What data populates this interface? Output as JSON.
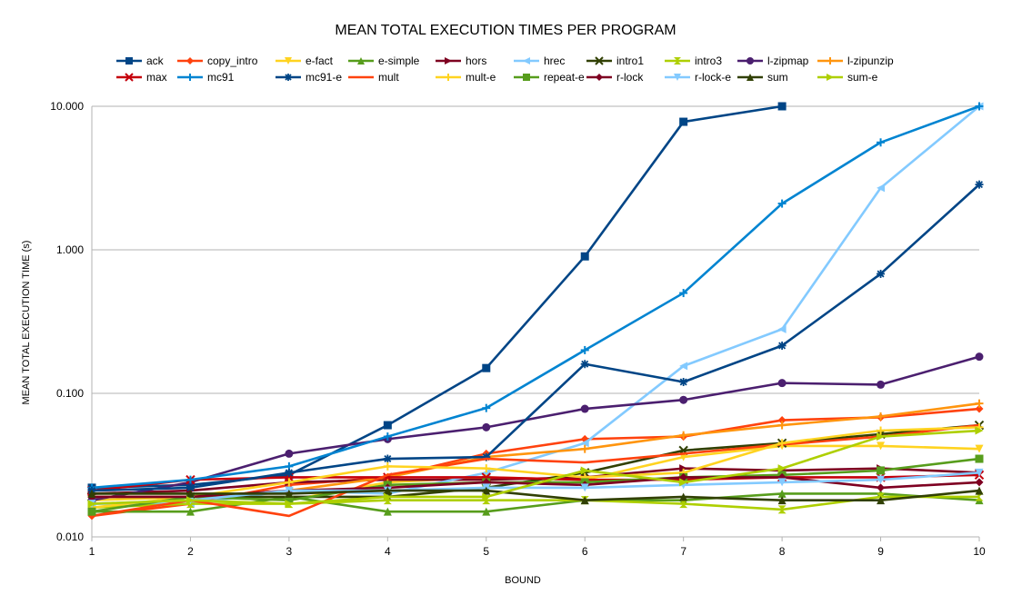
{
  "chart_data": {
    "type": "line",
    "title": "MEAN TOTAL EXECUTION TIMES PER PROGRAM",
    "xlabel": "BOUND",
    "ylabel": "MEAN TOTAL EXECUTION TIME (s)",
    "yscale": "log",
    "ylim": [
      0.01,
      10
    ],
    "xlim": [
      1,
      10
    ],
    "grid": "horizontal",
    "legend_position": "top",
    "x": [
      1,
      2,
      3,
      4,
      5,
      6,
      7,
      8,
      9,
      10
    ],
    "x_tick_labels": [
      "1",
      "2",
      "3",
      "4",
      "5",
      "6",
      "7",
      "8",
      "9",
      "10"
    ],
    "y_tick_values": [
      0.01,
      0.1,
      1,
      10
    ],
    "y_tick_labels": [
      "0.010",
      "0.100",
      "1.000",
      "10.000"
    ],
    "series": [
      {
        "name": "ack",
        "color": "#004586",
        "marker": "square",
        "values": [
          0.022,
          0.023,
          0.027,
          0.06,
          0.15,
          0.9,
          7.8,
          10.0,
          null,
          null
        ]
      },
      {
        "name": "copy_intro",
        "color": "#ff420e",
        "marker": "diamond",
        "values": [
          0.014,
          0.017,
          0.023,
          0.026,
          0.038,
          0.048,
          0.05,
          0.065,
          0.068,
          0.078
        ]
      },
      {
        "name": "e-fact",
        "color": "#ffd320",
        "marker": "triangle-down",
        "values": [
          0.018,
          0.019,
          0.018,
          0.024,
          0.026,
          0.025,
          0.036,
          0.043,
          0.043,
          0.041
        ]
      },
      {
        "name": "e-simple",
        "color": "#579d1c",
        "marker": "triangle-up",
        "values": [
          0.015,
          0.015,
          0.019,
          0.015,
          0.015,
          0.018,
          0.018,
          0.02,
          0.02,
          0.018
        ]
      },
      {
        "name": "hors",
        "color": "#7e0021",
        "marker": "triangle-right",
        "values": [
          0.02,
          0.021,
          0.024,
          0.025,
          0.025,
          0.026,
          0.03,
          0.029,
          0.03,
          0.028
        ]
      },
      {
        "name": "hrec",
        "color": "#83caff",
        "marker": "triangle-left",
        "values": [
          0.017,
          0.017,
          0.021,
          0.02,
          0.028,
          0.045,
          0.155,
          0.28,
          2.7,
          10.0
        ]
      },
      {
        "name": "intro1",
        "color": "#314004",
        "marker": "x",
        "values": [
          0.019,
          0.019,
          0.019,
          0.019,
          0.022,
          0.028,
          0.04,
          0.045,
          0.052,
          0.06
        ]
      },
      {
        "name": "intro3",
        "color": "#aecf00",
        "marker": "hourglass",
        "values": [
          0.016,
          0.017,
          0.017,
          0.018,
          0.018,
          0.018,
          0.017,
          0.0155,
          0.019,
          0.019
        ]
      },
      {
        "name": "l-zipmap",
        "color": "#4b1f6f",
        "marker": "circle",
        "values": [
          0.018,
          0.024,
          0.038,
          0.048,
          0.058,
          0.078,
          0.09,
          0.118,
          0.115,
          0.18
        ]
      },
      {
        "name": "l-zipunzip",
        "color": "#ff950e",
        "marker": "plus",
        "values": [
          0.019,
          0.019,
          0.021,
          0.026,
          0.036,
          0.041,
          0.051,
          0.06,
          0.069,
          0.085
        ]
      },
      {
        "name": "max",
        "color": "#c5000b",
        "marker": "x",
        "values": [
          0.021,
          0.025,
          0.026,
          0.026,
          0.026,
          0.025,
          0.025,
          0.026,
          0.026,
          0.027
        ]
      },
      {
        "name": "mc91",
        "color": "#0084d1",
        "marker": "plus",
        "values": [
          0.022,
          0.025,
          0.031,
          0.05,
          0.079,
          0.2,
          0.5,
          2.1,
          5.6,
          10.0
        ]
      },
      {
        "name": "mc91-e",
        "color": "#004586",
        "marker": "star",
        "values": [
          0.021,
          0.022,
          0.028,
          0.035,
          0.036,
          0.16,
          0.12,
          0.215,
          0.68,
          2.85
        ]
      },
      {
        "name": "mult",
        "color": "#ff420e",
        "marker": "none",
        "values": [
          0.014,
          0.018,
          0.014,
          0.027,
          0.035,
          0.033,
          0.038,
          0.044,
          0.05,
          0.06
        ]
      },
      {
        "name": "mult-e",
        "color": "#ffd320",
        "marker": "plus",
        "values": [
          0.016,
          0.019,
          0.024,
          0.031,
          0.03,
          0.026,
          0.028,
          0.045,
          0.055,
          0.058
        ]
      },
      {
        "name": "repeat-e",
        "color": "#579d1c",
        "marker": "square",
        "values": [
          0.015,
          0.019,
          0.018,
          0.023,
          0.024,
          0.024,
          0.026,
          0.027,
          0.029,
          0.035
        ]
      },
      {
        "name": "r-lock",
        "color": "#7e0021",
        "marker": "diamond",
        "values": [
          0.019,
          0.019,
          0.021,
          0.022,
          0.024,
          0.023,
          0.026,
          0.026,
          0.022,
          0.024
        ]
      },
      {
        "name": "r-lock-e",
        "color": "#83caff",
        "marker": "triangle-down",
        "values": [
          0.017,
          0.018,
          0.021,
          0.021,
          0.022,
          0.022,
          0.023,
          0.024,
          0.025,
          0.028
        ]
      },
      {
        "name": "sum",
        "color": "#314004",
        "marker": "triangle-up",
        "values": [
          0.02,
          0.02,
          0.02,
          0.021,
          0.021,
          0.018,
          0.019,
          0.018,
          0.018,
          0.021
        ]
      },
      {
        "name": "sum-e",
        "color": "#aecf00",
        "marker": "triangle-right",
        "values": [
          0.017,
          0.018,
          0.017,
          0.019,
          0.019,
          0.029,
          0.024,
          0.03,
          0.05,
          0.055
        ]
      }
    ]
  }
}
